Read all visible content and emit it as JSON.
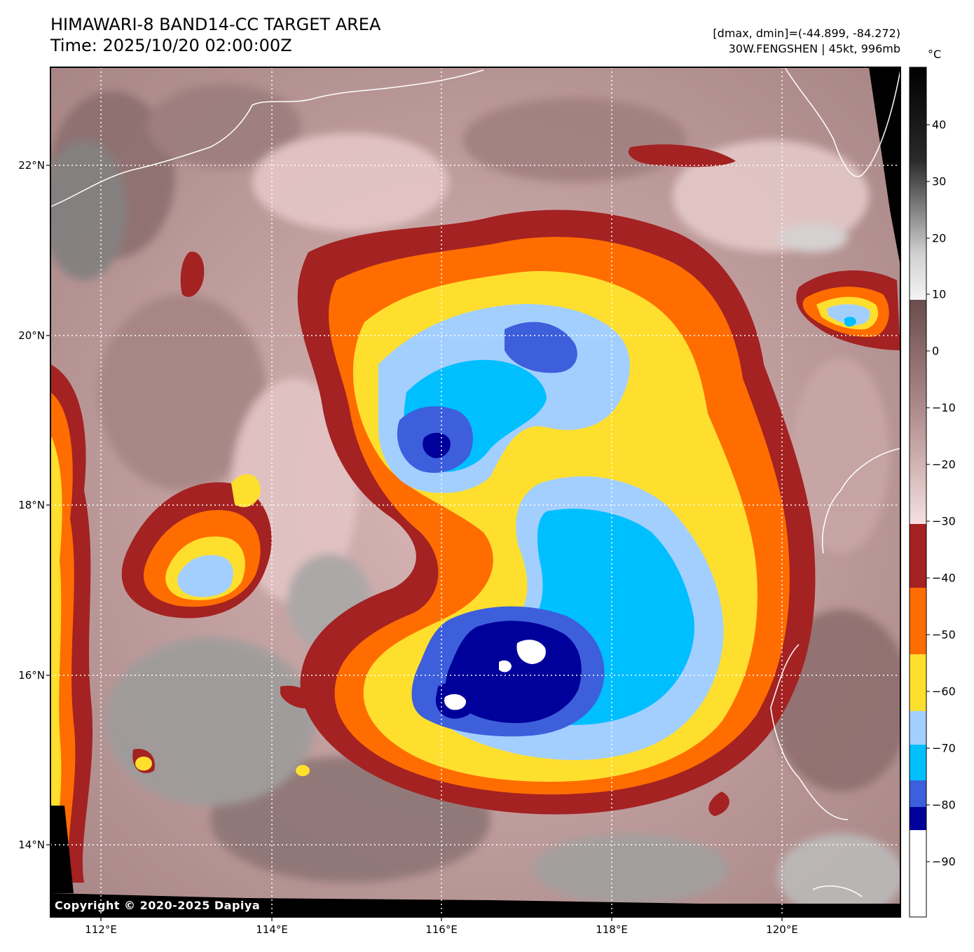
{
  "header": {
    "title_line1": "HIMAWARI-8 BAND14-CC TARGET AREA",
    "title_line2": "Time: 2025/10/20 02:00:00Z",
    "info_line1": "[dmax, dmin]=(-44.899, -84.272)",
    "info_line2": "30W.FENGSHEN | 45kt, 996mb"
  },
  "map": {
    "lat_labels": [
      "22°N",
      "20°N",
      "18°N",
      "16°N",
      "14°N"
    ],
    "lon_labels": [
      "112°E",
      "114°E",
      "116°E",
      "118°E",
      "120°E"
    ],
    "copyright": "Copyright © 2020-2025 Dapiya"
  },
  "colorbar": {
    "unit": "°C",
    "ticks": [
      "40",
      "30",
      "20",
      "10",
      "0",
      "−10",
      "−20",
      "−30",
      "−40",
      "−50",
      "−60",
      "−70",
      "−80",
      "−90"
    ],
    "colors": {
      "below_-84": "#ffffff",
      "-84_-80": "#00009a",
      "-80_-76": "#3d5fdc",
      "-76_-70": "#00bfff",
      "-70_-64": "#a3cfff",
      "-64_-52": "#ffdf2e",
      "-52_-41": "#ff6d00",
      "-41_-30": "#a42222",
      "warm_top": "#f8e0e0",
      "warm_bottom": "#735454"
    }
  }
}
